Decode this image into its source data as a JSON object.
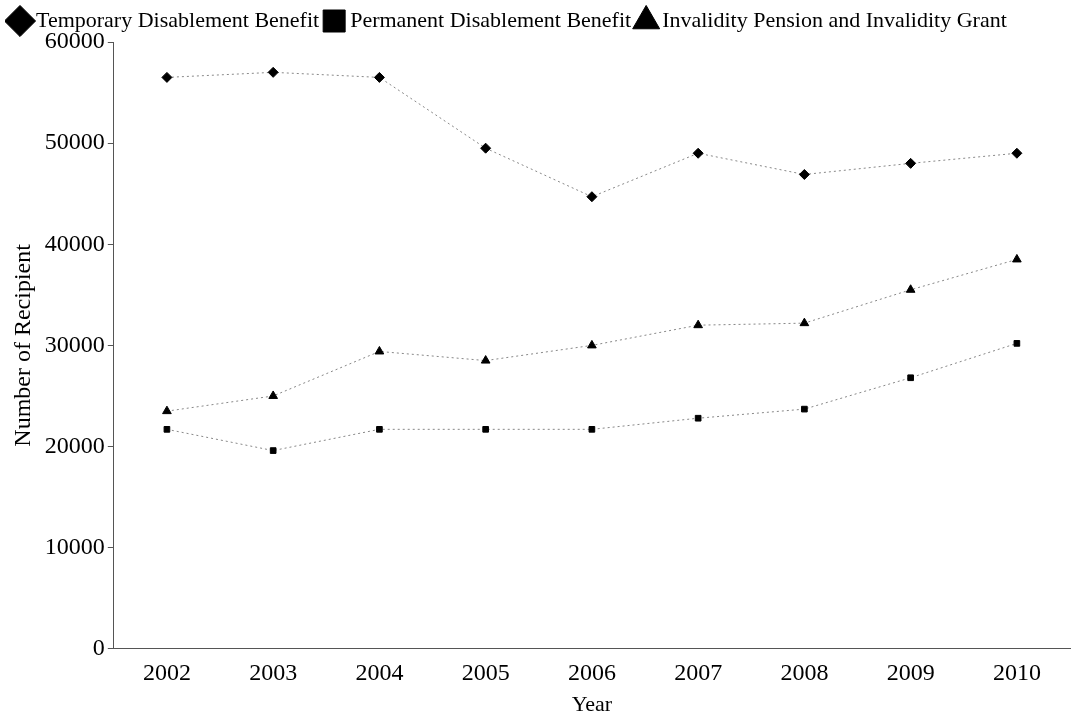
{
  "chart_data": {
    "type": "line",
    "xlabel": "Year",
    "ylabel": "Number of Recipient",
    "categories": [
      "2002",
      "2003",
      "2004",
      "2005",
      "2006",
      "2007",
      "2008",
      "2009",
      "2010"
    ],
    "series": [
      {
        "name": "Temporary Disablement Benefit",
        "color": "#000000",
        "marker": "diamond",
        "values": [
          56500,
          57000,
          56500,
          49500,
          44700,
          49000,
          46900,
          48000,
          49000
        ]
      },
      {
        "name": "Permanent Disablement Benefit",
        "color": "#000000",
        "marker": "square",
        "values": [
          21700,
          19600,
          21700,
          21700,
          21700,
          22800,
          23700,
          26800,
          30200
        ]
      },
      {
        "name": "Invalidity Pension and Invalidity Grant",
        "color": "#000000",
        "marker": "triangle",
        "values": [
          23500,
          25000,
          29400,
          28500,
          30000,
          32000,
          32200,
          35500,
          38500
        ]
      }
    ],
    "ylim": [
      0,
      60000
    ],
    "yticks": [
      0,
      10000,
      20000,
      30000,
      40000,
      50000,
      60000
    ],
    "grid": false,
    "legend": "top",
    "line_style": "dotted"
  }
}
